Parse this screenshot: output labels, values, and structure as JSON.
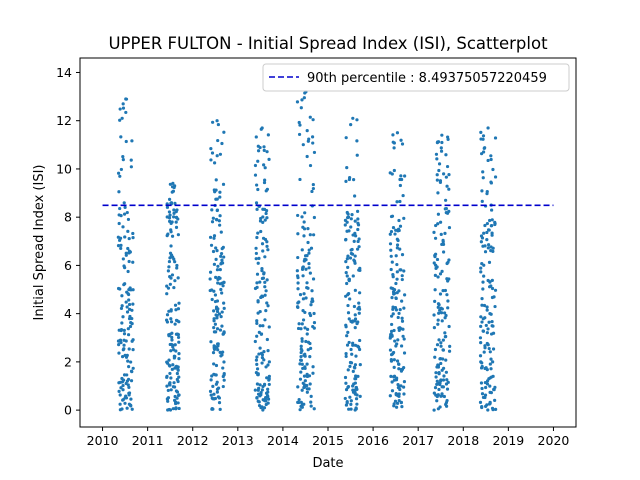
{
  "chart_data": {
    "type": "scatter",
    "title": "UPPER FULTON - Initial Spread Index (ISI), Scatterplot",
    "xlabel": "Date",
    "ylabel": "Initial Spread Index (ISI)",
    "xlim": [
      2009.5,
      2020.5
    ],
    "ylim": [
      -0.7,
      14.6
    ],
    "x_ticks": [
      2010,
      2011,
      2012,
      2013,
      2014,
      2015,
      2016,
      2017,
      2018,
      2019,
      2020
    ],
    "y_ticks": [
      0,
      2,
      4,
      6,
      8,
      10,
      12,
      14
    ],
    "grid": false,
    "legend_position": "top-right",
    "point_color": "#1f77b4",
    "reference_line": {
      "label": "90th percentile : 8.49375057220459",
      "value": 8.49375057220459,
      "color": "#0000cc",
      "style": "dashed"
    },
    "seasons": [
      {
        "year": 2010,
        "start_frac": 0.35,
        "end_frac": 0.68,
        "max_isi": 12.9
      },
      {
        "year": 2011,
        "start_frac": 0.42,
        "end_frac": 0.7,
        "max_isi": 9.4
      },
      {
        "year": 2012,
        "start_frac": 0.38,
        "end_frac": 0.7,
        "max_isi": 12.0
      },
      {
        "year": 2013,
        "start_frac": 0.38,
        "end_frac": 0.7,
        "max_isi": 11.7
      },
      {
        "year": 2014,
        "start_frac": 0.32,
        "end_frac": 0.7,
        "max_isi": 13.2
      },
      {
        "year": 2015,
        "start_frac": 0.38,
        "end_frac": 0.72,
        "max_isi": 12.1
      },
      {
        "year": 2016,
        "start_frac": 0.38,
        "end_frac": 0.7,
        "max_isi": 11.5
      },
      {
        "year": 2017,
        "start_frac": 0.35,
        "end_frac": 0.7,
        "max_isi": 11.4
      },
      {
        "year": 2018,
        "start_frac": 0.38,
        "end_frac": 0.72,
        "max_isi": 11.7
      }
    ]
  }
}
